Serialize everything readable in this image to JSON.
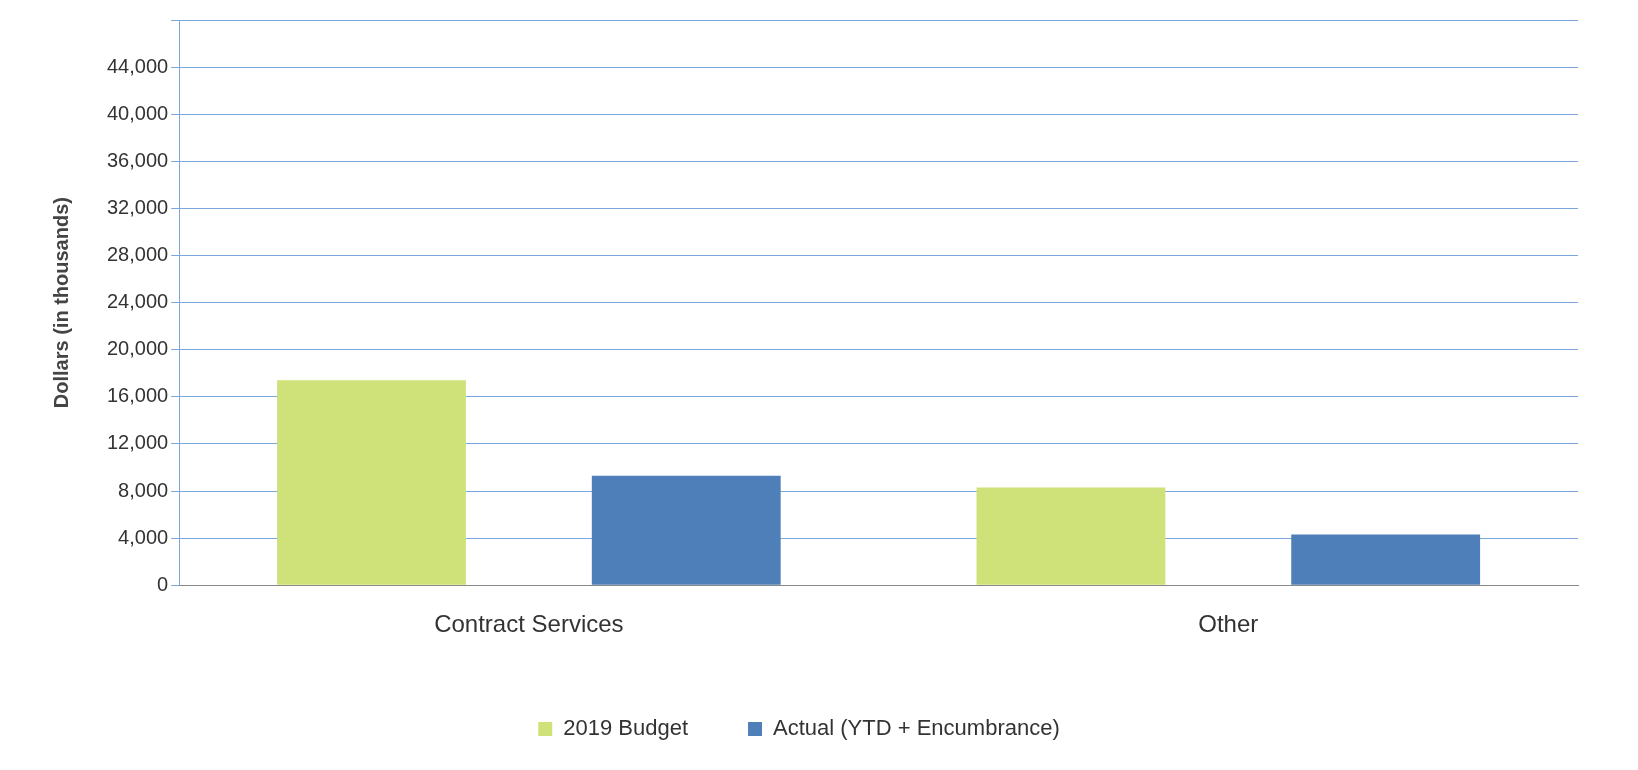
{
  "chart_data": {
    "type": "bar",
    "ylabel": "Dollars (in thousands)",
    "categories": [
      "Contract Services",
      "Other"
    ],
    "series": [
      {
        "name": "2019 Budget",
        "color": "#cfe27a",
        "values": [
          17400,
          8300
        ]
      },
      {
        "name": "Actual (YTD + Encumbrance)",
        "color": "#4f7fb8",
        "values": [
          9300,
          4300
        ]
      }
    ],
    "ylim": [
      0,
      48000
    ],
    "yticks": [
      0,
      {
        "value": 4000,
        "label": "4,000"
      },
      {
        "value": 8000,
        "label": "8,000"
      },
      {
        "value": 12000,
        "label": "12,000"
      },
      {
        "value": 16000,
        "label": "16,000"
      },
      {
        "value": 20000,
        "label": "20,000"
      },
      {
        "value": 24000,
        "label": "24,000"
      },
      {
        "value": 28000,
        "label": "28,000"
      },
      {
        "value": 32000,
        "label": "32,000"
      },
      {
        "value": 36000,
        "label": "36,000"
      },
      {
        "value": 40000,
        "label": "40,000"
      },
      {
        "value": 44000,
        "label": "44,000"
      },
      {
        "value": 48000,
        "label": null
      }
    ],
    "grid": "y",
    "legend": "bottom"
  }
}
